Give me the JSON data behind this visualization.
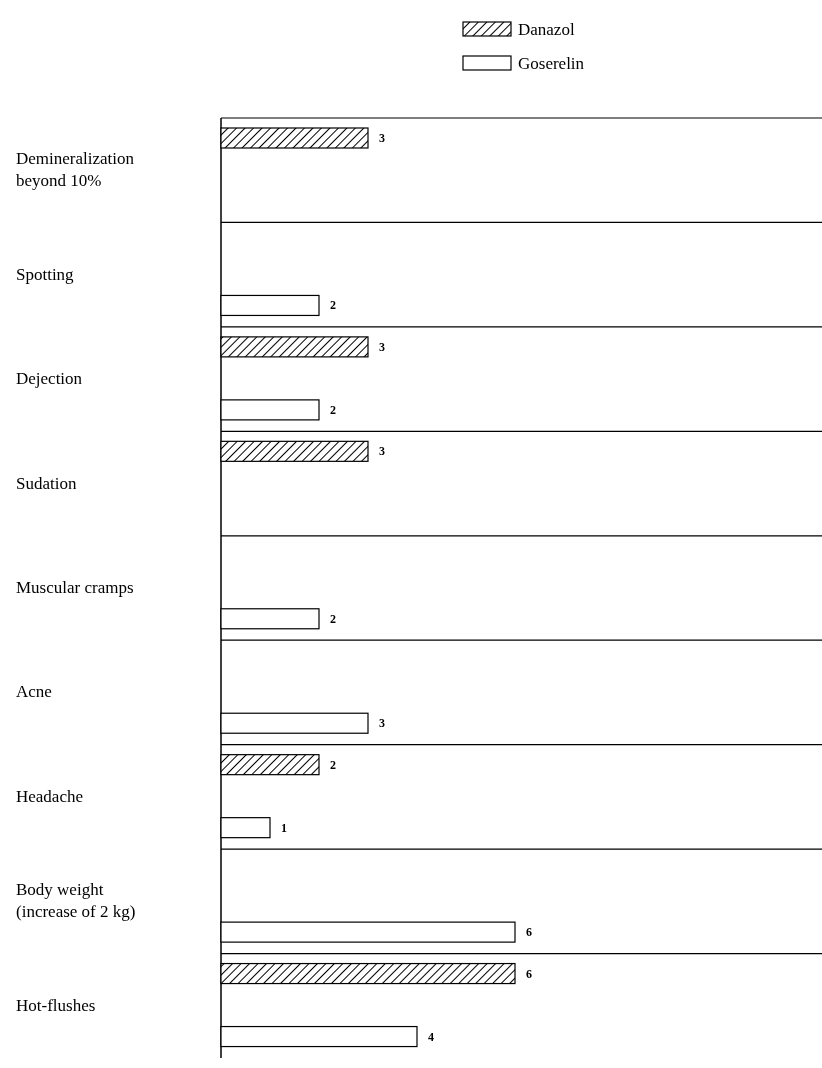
{
  "chart_data": {
    "type": "bar",
    "orientation": "horizontal",
    "categories": [
      "Demineralization\nbeyond 10%",
      "Spotting",
      "Dejection",
      "Sudation",
      "Muscular cramps",
      "Acne",
      "Headache",
      "Body weight\n(increase of 2 kg)",
      "Hot-flushes"
    ],
    "series": [
      {
        "name": "Danazol",
        "color": "#000000",
        "values": [
          3,
          null,
          3,
          3,
          null,
          null,
          2,
          null,
          6
        ]
      },
      {
        "name": "Goserelin",
        "color": "#ffffff",
        "values": [
          null,
          2,
          2,
          null,
          2,
          3,
          1,
          6,
          4
        ]
      }
    ],
    "data_labels": true,
    "legend": "top right"
  }
}
